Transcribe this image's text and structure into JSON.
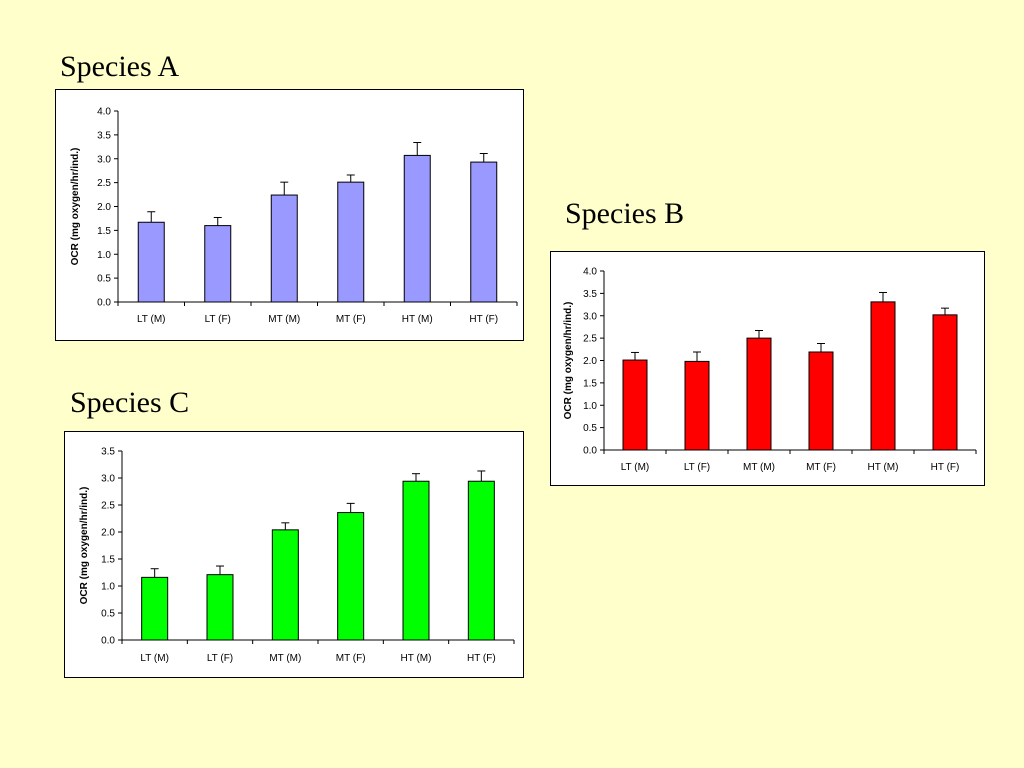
{
  "page": {
    "background": "#ffffcc"
  },
  "chart_data": [
    {
      "type": "bar",
      "title": "Species A",
      "ylabel": "OCR (mg oxygen/hr/ind.)",
      "xlabel": "",
      "categories": [
        "LT (M)",
        "LT (F)",
        "MT (M)",
        "MT (F)",
        "HT (M)",
        "HT (F)"
      ],
      "values": [
        1.67,
        1.6,
        2.24,
        2.51,
        3.07,
        2.93
      ],
      "errors": [
        0.22,
        0.17,
        0.27,
        0.15,
        0.27,
        0.18
      ],
      "ylim": [
        0,
        4.0
      ],
      "yticks": [
        0.0,
        0.5,
        1.0,
        1.5,
        2.0,
        2.5,
        3.0,
        3.5,
        4.0
      ],
      "ytick_labels": [
        "0.0",
        "0.5",
        "1.0",
        "1.5",
        "2.0",
        "2.5",
        "3.0",
        "3.5",
        "4.0"
      ],
      "bar_color": "#9999ff",
      "grid": false,
      "legend": "none"
    },
    {
      "type": "bar",
      "title": "Species B",
      "ylabel": "OCR (mg oxygen/hr/ind.)",
      "xlabel": "",
      "categories": [
        "LT (M)",
        "LT (F)",
        "MT (M)",
        "MT (F)",
        "HT (M)",
        "HT (F)"
      ],
      "values": [
        2.01,
        1.98,
        2.5,
        2.19,
        3.31,
        3.02
      ],
      "errors": [
        0.17,
        0.21,
        0.17,
        0.19,
        0.21,
        0.15
      ],
      "ylim": [
        0,
        4.0
      ],
      "yticks": [
        0.0,
        0.5,
        1.0,
        1.5,
        2.0,
        2.5,
        3.0,
        3.5,
        4.0
      ],
      "ytick_labels": [
        "0.0",
        "0.5",
        "1.0",
        "1.5",
        "2.0",
        "2.5",
        "3.0",
        "3.5",
        "4.0"
      ],
      "bar_color": "#ff0000",
      "grid": false,
      "legend": "none"
    },
    {
      "type": "bar",
      "title": "Species C",
      "ylabel": "OCR (mg oxygen/hr/ind.)",
      "xlabel": "",
      "categories": [
        "LT (M)",
        "LT (F)",
        "MT (M)",
        "MT (F)",
        "HT (M)",
        "HT (F)"
      ],
      "values": [
        1.16,
        1.21,
        2.04,
        2.36,
        2.94,
        2.94
      ],
      "errors": [
        0.16,
        0.16,
        0.13,
        0.17,
        0.14,
        0.19
      ],
      "ylim": [
        0,
        3.5
      ],
      "yticks": [
        0.0,
        0.5,
        1.0,
        1.5,
        2.0,
        2.5,
        3.0,
        3.5
      ],
      "ytick_labels": [
        "0.0",
        "0.5",
        "1.0",
        "1.5",
        "2.0",
        "2.5",
        "3.0",
        "3.5"
      ],
      "bar_color": "#00ff00",
      "grid": false,
      "legend": "none"
    }
  ]
}
